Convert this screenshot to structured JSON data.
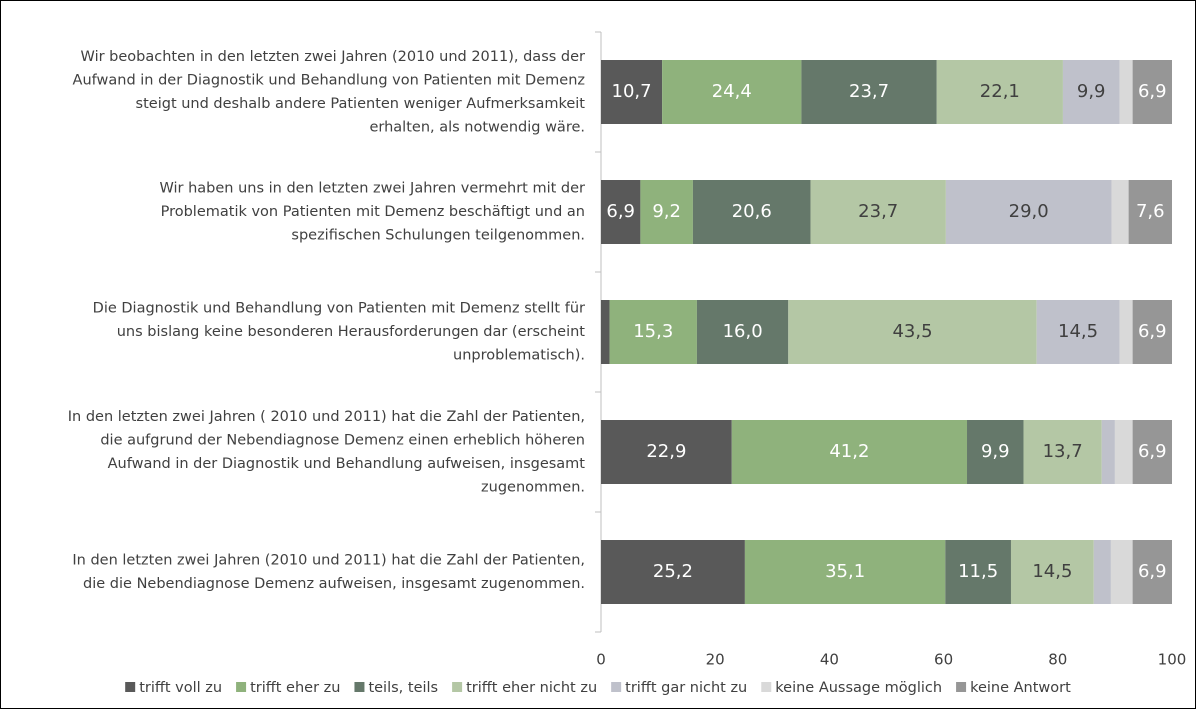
{
  "chart_data": {
    "type": "stacked_barh",
    "categories": [
      [
        "Wir beobachten in den letzten zwei Jahren (2010 und 2011), dass der",
        "Aufwand in der Diagnostik und Behandlung von Patienten mit Demenz",
        "steigt und deshalb andere Patienten weniger Aufmerksamkeit",
        "erhalten, als notwendig wäre."
      ],
      [
        "Wir haben uns in den letzten zwei Jahren vermehrt mit der",
        "Problematik von Patienten mit Demenz beschäftigt und an",
        "spezifischen Schulungen teilgenommen."
      ],
      [
        "Die Diagnostik und Behandlung von Patienten mit Demenz stellt für",
        "uns bislang keine besonderen Herausforderungen dar (erscheint",
        "unproblematisch)."
      ],
      [
        "In den letzten zwei Jahren ( 2010 und 2011) hat die Zahl der Patienten,",
        "die aufgrund der Nebendiagnose Demenz einen erheblich höheren",
        "Aufwand in der Diagnostik und Behandlung aufweisen, insgesamt",
        "zugenommen."
      ],
      [
        "In den letzten zwei Jahren (2010 und 2011) hat die Zahl der Patienten,",
        "die die Nebendiagnose Demenz aufweisen, insgesamt zugenommen."
      ]
    ],
    "series": [
      {
        "name": "trifft voll zu",
        "color": "#595959",
        "label_color": "#ffffff",
        "values": [
          10.7,
          6.9,
          1.5,
          22.9,
          25.2
        ],
        "value_labels": [
          "10,7",
          "6,9",
          null,
          "22,9",
          "25,2"
        ]
      },
      {
        "name": "trifft eher zu",
        "color": "#8fb27c",
        "label_color": "#ffffff",
        "values": [
          24.4,
          9.2,
          15.3,
          41.2,
          35.1
        ],
        "value_labels": [
          "24,4",
          "9,2",
          "15,3",
          "41,2",
          "35,1"
        ]
      },
      {
        "name": "teils, teils",
        "color": "#65786a",
        "label_color": "#ffffff",
        "values": [
          23.7,
          20.6,
          16.0,
          9.9,
          11.5
        ],
        "value_labels": [
          "23,7",
          "20,6",
          "16,0",
          "9,9",
          "11,5"
        ]
      },
      {
        "name": "trifft eher nicht zu",
        "color": "#b4c7a5",
        "label_color": "#404040",
        "values": [
          22.1,
          23.7,
          43.5,
          13.7,
          14.5
        ],
        "value_labels": [
          "22,1",
          "23,7",
          "43,5",
          "13,7",
          "14,5"
        ]
      },
      {
        "name": "trifft gar nicht zu",
        "color": "#bfc1cb",
        "label_color": "#404040",
        "values": [
          9.9,
          29.0,
          14.5,
          2.3,
          3.0
        ],
        "value_labels": [
          "9,9",
          "29,0",
          "14,5",
          null,
          null
        ]
      },
      {
        "name": "keine Aussage möglich",
        "color": "#d9d9d9",
        "label_color": "#404040",
        "values": [
          2.3,
          3.0,
          2.3,
          3.1,
          3.8
        ],
        "value_labels": [
          null,
          null,
          null,
          null,
          null
        ]
      },
      {
        "name": "keine Antwort",
        "color": "#969696",
        "label_color": "#ffffff",
        "values": [
          6.9,
          7.6,
          6.9,
          6.9,
          6.9
        ],
        "value_labels": [
          "6,9",
          "7,6",
          "6,9",
          "6,9",
          "6,9"
        ]
      }
    ],
    "xlim": [
      0,
      100
    ],
    "xticks": [
      0,
      20,
      40,
      60,
      80,
      100
    ],
    "legend": "bottom"
  }
}
